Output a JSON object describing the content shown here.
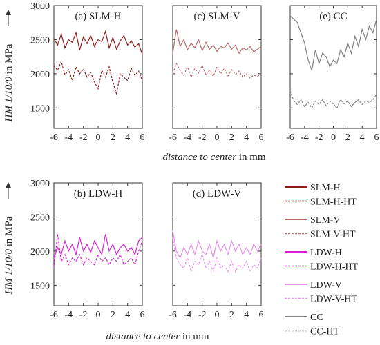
{
  "chart_data": {
    "type": "line",
    "y_label_parts": [
      "HM 1/10/0",
      " in MPa"
    ],
    "x_label_parts": [
      "distance to center",
      " in mm"
    ],
    "x_ticks": [
      "-6",
      "-4",
      "-2",
      "0",
      "2",
      "4",
      "6"
    ],
    "y_ticks": [
      "3000",
      "2500",
      "2000",
      "1500"
    ],
    "xlim": [
      -6,
      6
    ],
    "ylim": [
      1200,
      3000
    ],
    "legend_position": "right-bottom",
    "legend": [
      {
        "label": "SLM-H",
        "color": "#8b1a1a",
        "dash": false
      },
      {
        "label": "SLM-H-HT",
        "color": "#8b1a1a",
        "dash": true
      },
      {
        "label": "SLM-V",
        "color": "#b86a6a",
        "dash": false
      },
      {
        "label": "SLM-V-HT",
        "color": "#b86a6a",
        "dash": true
      },
      {
        "label": "LDW-H",
        "color": "#d61fd6",
        "dash": false
      },
      {
        "label": "LDW-H-HT",
        "color": "#d61fd6",
        "dash": true
      },
      {
        "label": "LDW-V",
        "color": "#ec8fec",
        "dash": false
      },
      {
        "label": "LDW-V-HT",
        "color": "#ec8fec",
        "dash": true
      },
      {
        "label": "CC",
        "color": "#808080",
        "dash": false
      },
      {
        "label": "CC-HT",
        "color": "#808080",
        "dash": true
      }
    ],
    "panels": [
      {
        "id": "a",
        "title": "(a) SLM-H",
        "series": [
          {
            "name": "SLM-H",
            "color": "#8b1a1a",
            "dash": false,
            "x": [
              -6,
              -5.5,
              -5,
              -4.5,
              -4,
              -3.5,
              -3,
              -2.5,
              -2,
              -1.5,
              -1,
              -0.5,
              0,
              0.5,
              1,
              1.5,
              2,
              2.5,
              3,
              3.5,
              4,
              4.5,
              5,
              5.5,
              6
            ],
            "y": [
              2520,
              2420,
              2580,
              2380,
              2500,
              2460,
              2600,
              2350,
              2540,
              2440,
              2560,
              2400,
              2500,
              2470,
              2620,
              2380,
              2530,
              2360,
              2480,
              2560,
              2420,
              2480,
              2390,
              2440,
              2280
            ]
          },
          {
            "name": "SLM-H-HT",
            "color": "#8b1a1a",
            "dash": true,
            "x": [
              -6,
              -5.5,
              -5,
              -4.5,
              -4,
              -3.5,
              -3,
              -2.5,
              -2,
              -1.5,
              -1,
              -0.5,
              0,
              0.5,
              1,
              1.5,
              2,
              2.5,
              3,
              3.5,
              4,
              4.5,
              5,
              5.5,
              6
            ],
            "y": [
              2120,
              2050,
              2180,
              1980,
              2060,
              1900,
              2100,
              2000,
              2070,
              1950,
              2020,
              1880,
              1780,
              2050,
              1950,
              2100,
              1880,
              1700,
              2000,
              1950,
              1900,
              2080,
              1980,
              2040,
              1900
            ]
          }
        ]
      },
      {
        "id": "c",
        "title": "(c) SLM-V",
        "series": [
          {
            "name": "SLM-V",
            "color": "#b86a6a",
            "dash": false,
            "x": [
              -6,
              -5.5,
              -5,
              -4.5,
              -4,
              -3.5,
              -3,
              -2.5,
              -2,
              -1.5,
              -1,
              -0.5,
              0,
              0.5,
              1,
              1.5,
              2,
              2.5,
              3,
              3.5,
              4,
              4.5,
              5,
              5.5,
              6
            ],
            "y": [
              2300,
              2650,
              2400,
              2500,
              2350,
              2450,
              2380,
              2500,
              2340,
              2460,
              2360,
              2420,
              2330,
              2400,
              2380,
              2450,
              2360,
              2420,
              2300,
              2380,
              2350,
              2400,
              2320,
              2360,
              2400
            ]
          },
          {
            "name": "SLM-V-HT",
            "color": "#b86a6a",
            "dash": true,
            "x": [
              -6,
              -5.5,
              -5,
              -4.5,
              -4,
              -3.5,
              -3,
              -2.5,
              -2,
              -1.5,
              -1,
              -0.5,
              0,
              0.5,
              1,
              1.5,
              2,
              2.5,
              3,
              3.5,
              4,
              4.5,
              5,
              5.5,
              6
            ],
            "y": [
              2000,
              2150,
              2050,
              1980,
              2100,
              1950,
              2080,
              2010,
              2120,
              1980,
              2050,
              1960,
              2100,
              2000,
              2080,
              1970,
              2060,
              1990,
              2040,
              1950,
              2000,
              1940,
              1980,
              1960,
              2000
            ]
          }
        ]
      },
      {
        "id": "e",
        "title": "(e) CC",
        "series": [
          {
            "name": "CC",
            "color": "#808080",
            "dash": false,
            "x": [
              -6,
              -5.5,
              -5,
              -4.5,
              -4,
              -3.5,
              -3,
              -2.5,
              -2,
              -1.5,
              -1,
              -0.5,
              0,
              0.5,
              1,
              1.5,
              2,
              2.5,
              3,
              3.5,
              4,
              4.5,
              5,
              5.5,
              6
            ],
            "y": [
              2850,
              2800,
              2750,
              2600,
              2450,
              2200,
              2050,
              2350,
              2150,
              2300,
              2250,
              2100,
              2200,
              2150,
              2350,
              2250,
              2450,
              2300,
              2550,
              2400,
              2650,
              2500,
              2700,
              2600,
              2800
            ]
          },
          {
            "name": "CC-HT",
            "color": "#808080",
            "dash": true,
            "x": [
              -6,
              -5.5,
              -5,
              -4.5,
              -4,
              -3.5,
              -3,
              -2.5,
              -2,
              -1.5,
              -1,
              -0.5,
              0,
              0.5,
              1,
              1.5,
              2,
              2.5,
              3,
              3.5,
              4,
              4.5,
              5,
              5.5,
              6
            ],
            "y": [
              1750,
              1600,
              1550,
              1620,
              1520,
              1580,
              1500,
              1600,
              1550,
              1620,
              1530,
              1600,
              1560,
              1500,
              1620,
              1560,
              1600,
              1520,
              1580,
              1620,
              1550,
              1600,
              1580,
              1620,
              1700
            ]
          }
        ]
      },
      {
        "id": "b",
        "title": "(b) LDW-H",
        "series": [
          {
            "name": "LDW-H",
            "color": "#d61fd6",
            "dash": false,
            "x": [
              -6,
              -5.5,
              -5,
              -4.5,
              -4,
              -3.5,
              -3,
              -2.5,
              -2,
              -1.5,
              -1,
              -0.5,
              0,
              0.5,
              1,
              1.5,
              2,
              2.5,
              3,
              3.5,
              4,
              4.5,
              5,
              5.5,
              6
            ],
            "y": [
              1900,
              2050,
              1950,
              2150,
              2000,
              2100,
              1950,
              2200,
              2000,
              2100,
              1980,
              2150,
              2050,
              1950,
              2250,
              2000,
              2100,
              1950,
              2050,
              2100,
              2000,
              2050,
              1950,
              2150,
              2200
            ]
          },
          {
            "name": "LDW-H-HT",
            "color": "#d61fd6",
            "dash": true,
            "x": [
              -6,
              -5.5,
              -5,
              -4.5,
              -4,
              -3.5,
              -3,
              -2.5,
              -2,
              -1.5,
              -1,
              -0.5,
              0,
              0.5,
              1,
              1.5,
              2,
              2.5,
              3,
              3.5,
              4,
              4.5,
              5,
              5.5,
              6
            ],
            "y": [
              1750,
              2250,
              1850,
              1950,
              1800,
              1900,
              1850,
              1950,
              1800,
              1900,
              1850,
              1800,
              1950,
              1850,
              1900,
              1800,
              1900,
              1850,
              1950,
              1800,
              1850,
              1900,
              1800,
              2000,
              2150
            ]
          }
        ]
      },
      {
        "id": "d",
        "title": "(d) LDW-V",
        "series": [
          {
            "name": "LDW-V",
            "color": "#ec8fec",
            "dash": false,
            "x": [
              -6,
              -5.5,
              -5,
              -4.5,
              -4,
              -3.5,
              -3,
              -2.5,
              -2,
              -1.5,
              -1,
              -0.5,
              0,
              0.5,
              1,
              1.5,
              2,
              2.5,
              3,
              3.5,
              4,
              4.5,
              5,
              5.5,
              6
            ],
            "y": [
              2300,
              2000,
              1900,
              2050,
              1950,
              2100,
              1950,
              2150,
              2000,
              1950,
              2100,
              1900,
              2150,
              2000,
              2100,
              1950,
              2150,
              2000,
              2100,
              1950,
              2050,
              1950,
              2100,
              2000,
              2100
            ]
          },
          {
            "name": "LDW-V-HT",
            "color": "#ec8fec",
            "dash": true,
            "x": [
              -6,
              -5.5,
              -5,
              -4.5,
              -4,
              -3.5,
              -3,
              -2.5,
              -2,
              -1.5,
              -1,
              -0.5,
              0,
              0.5,
              1,
              1.5,
              2,
              2.5,
              3,
              3.5,
              4,
              4.5,
              5,
              5.5,
              6
            ],
            "y": [
              2200,
              1900,
              1800,
              1750,
              1900,
              1700,
              1850,
              1800,
              1950,
              1750,
              1850,
              1700,
              1900,
              1750,
              1800,
              1700,
              1850,
              1700,
              1800,
              1750,
              1850,
              1700,
              1800,
              1750,
              1900
            ]
          }
        ]
      }
    ]
  }
}
